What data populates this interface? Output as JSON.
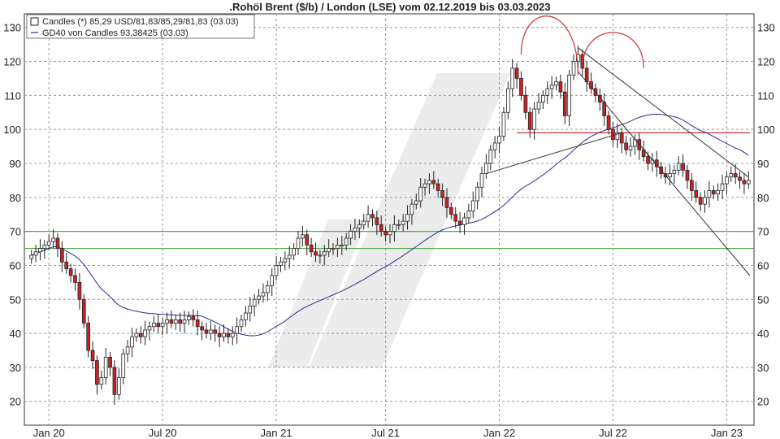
{
  "chart_data": {
    "type": "candlestick",
    "title": ".Rohöl Brent ($/b) / London (LSE) vom 02.12.2019 bis 03.03.2023",
    "ylim": [
      13,
      134
    ],
    "y_ticks": [
      20,
      30,
      40,
      50,
      60,
      70,
      80,
      90,
      100,
      110,
      120,
      130
    ],
    "x_ticks": [
      {
        "label": "Jan 20",
        "index": 4
      },
      {
        "label": "Jul 20",
        "index": 30
      },
      {
        "label": "Jan 21",
        "index": 56
      },
      {
        "label": "Jul 21",
        "index": 81
      },
      {
        "label": "Jan 22",
        "index": 107
      },
      {
        "label": "Jul 22",
        "index": 133
      },
      {
        "label": "Jan 23",
        "index": 159
      }
    ],
    "grid": true,
    "legend": {
      "placement": "top-left",
      "entries": [
        {
          "label": "Candles (*) 85,29 USD/81,83/85,29/81,83 (03.03)"
        },
        {
          "label": "GD40 von Candles 93,38425 (03.03)"
        }
      ]
    },
    "colors": {
      "up": "#ffffff",
      "down": "#cc2222",
      "outline": "#222222",
      "ma": "#2b2b8c",
      "support": "#4daa4d",
      "resistance": "#cc3333",
      "channel": "#333333",
      "arcs": "#cc3333"
    },
    "closes": [
      63,
      64,
      65,
      66,
      67,
      68,
      65,
      61,
      59,
      57,
      55,
      50,
      43,
      35,
      32,
      25,
      27,
      33,
      30,
      22,
      27,
      34,
      36,
      39,
      40,
      39,
      41,
      42,
      43,
      42,
      43,
      44,
      43,
      44,
      43,
      44,
      45,
      44,
      42,
      41,
      40,
      41,
      40,
      39,
      40,
      39,
      40,
      42,
      44,
      46,
      48,
      50,
      51,
      52,
      54,
      57,
      60,
      61,
      62,
      63,
      65,
      68,
      69,
      66,
      64,
      63,
      63,
      64,
      65,
      65,
      66,
      66,
      68,
      70,
      71,
      72,
      73,
      75,
      74,
      72,
      70,
      69,
      70,
      72,
      72,
      73,
      75,
      78,
      79,
      83,
      84,
      85,
      84,
      82,
      80,
      77,
      75,
      73,
      72,
      74,
      76,
      79,
      83,
      87,
      90,
      94,
      96,
      98,
      105,
      112,
      118,
      115,
      110,
      105,
      100,
      106,
      108,
      110,
      112,
      113,
      114,
      111,
      104,
      116,
      120,
      122,
      118,
      114,
      112,
      110,
      108,
      104,
      100,
      97,
      99,
      96,
      94,
      95,
      97,
      94,
      92,
      90,
      91,
      89,
      87,
      86,
      87,
      88,
      90,
      88,
      85,
      82,
      80,
      78,
      80,
      82,
      81,
      82,
      84,
      86,
      87,
      86,
      85,
      84,
      85
    ]
  }
}
